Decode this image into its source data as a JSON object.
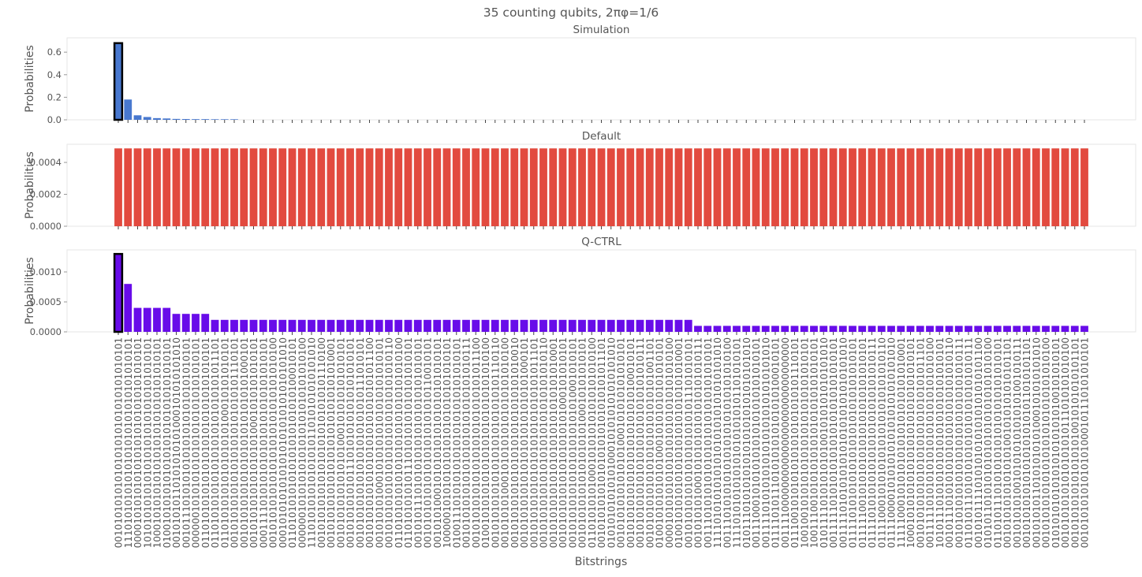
{
  "figure_title": "35 counting qubits, 2πφ=1/6",
  "xlabel": "Bitstrings",
  "colors": {
    "simulation": "#4878cf",
    "default": "#e24a3f",
    "qctrl": "#680ce9",
    "highlight_edge": "#000000",
    "axes_edge": "#e6e6e6"
  },
  "chart_data": [
    {
      "type": "bar",
      "title": "Simulation",
      "ylabel": "Probabilities",
      "ylim": [
        0,
        0.727
      ],
      "yticks": [
        "0.0",
        "0.2",
        "0.4",
        "0.6"
      ],
      "ytick_values": [
        0,
        0.2,
        0.4,
        0.6
      ],
      "highlight_index": 0,
      "values": [
        0.68,
        0.18,
        0.04,
        0.025,
        0.015,
        0.012,
        0.008,
        0.007,
        0.006,
        0.006,
        0.005,
        0.005,
        0.005,
        0,
        0,
        0,
        0,
        0,
        0,
        0,
        0,
        0,
        0,
        0,
        0,
        0,
        0,
        0,
        0,
        0,
        0,
        0,
        0,
        0,
        0,
        0,
        0,
        0,
        0,
        0,
        0,
        0,
        0,
        0,
        0,
        0,
        0,
        0,
        0,
        0,
        0,
        0,
        0,
        0,
        0,
        0,
        0,
        0,
        0,
        0,
        0,
        0,
        0,
        0,
        0,
        0,
        0,
        0,
        0,
        0,
        0,
        0,
        0,
        0,
        0,
        0,
        0,
        0,
        0,
        0,
        0,
        0,
        0,
        0,
        0,
        0,
        0,
        0,
        0,
        0,
        0,
        0,
        0,
        0,
        0,
        0,
        0,
        0,
        0,
        0,
        0
      ]
    },
    {
      "type": "bar",
      "title": "Default",
      "ylabel": "Probabilities",
      "ylim": [
        0,
        0.000514
      ],
      "yticks": [
        "0.0000",
        "0.0002",
        "0.0004"
      ],
      "ytick_values": [
        0,
        0.0002,
        0.0004
      ],
      "highlight_index": null,
      "values": [
        0.000488,
        0.000488,
        0.000488,
        0.000488,
        0.000488,
        0.000488,
        0.000488,
        0.000488,
        0.000488,
        0.000488,
        0.000488,
        0.000488,
        0.000488,
        0.000488,
        0.000488,
        0.000488,
        0.000488,
        0.000488,
        0.000488,
        0.000488,
        0.000488,
        0.000488,
        0.000488,
        0.000488,
        0.000488,
        0.000488,
        0.000488,
        0.000488,
        0.000488,
        0.000488,
        0.000488,
        0.000488,
        0.000488,
        0.000488,
        0.000488,
        0.000488,
        0.000488,
        0.000488,
        0.000488,
        0.000488,
        0.000488,
        0.000488,
        0.000488,
        0.000488,
        0.000488,
        0.000488,
        0.000488,
        0.000488,
        0.000488,
        0.000488,
        0.000488,
        0.000488,
        0.000488,
        0.000488,
        0.000488,
        0.000488,
        0.000488,
        0.000488,
        0.000488,
        0.000488,
        0.000488,
        0.000488,
        0.000488,
        0.000488,
        0.000488,
        0.000488,
        0.000488,
        0.000488,
        0.000488,
        0.000488,
        0.000488,
        0.000488,
        0.000488,
        0.000488,
        0.000488,
        0.000488,
        0.000488,
        0.000488,
        0.000488,
        0.000488,
        0.000488,
        0.000488,
        0.000488,
        0.000488,
        0.000488,
        0.000488,
        0.000488,
        0.000488,
        0.000488,
        0.000488,
        0.000488,
        0.000488,
        0.000488,
        0.000488,
        0.000488,
        0.000488,
        0.000488,
        0.000488,
        0.000488,
        0.000488,
        0.000488
      ]
    },
    {
      "type": "bar",
      "title": "Q-CTRL",
      "ylabel": "Probabilities",
      "ylim": [
        0,
        0.001368
      ],
      "yticks": [
        "0.0000",
        "0.0005",
        "0.0010"
      ],
      "ytick_values": [
        0,
        0.0005,
        0.001
      ],
      "highlight_index": 0,
      "values": [
        0.0013,
        0.0008,
        0.0004,
        0.0004,
        0.0004,
        0.0004,
        0.0003,
        0.0003,
        0.0003,
        0.0003,
        0.0002,
        0.0002,
        0.0002,
        0.0002,
        0.0002,
        0.0002,
        0.0002,
        0.0002,
        0.0002,
        0.0002,
        0.0002,
        0.0002,
        0.0002,
        0.0002,
        0.0002,
        0.0002,
        0.0002,
        0.0002,
        0.0002,
        0.0002,
        0.0002,
        0.0002,
        0.0002,
        0.0002,
        0.0002,
        0.0002,
        0.0002,
        0.0002,
        0.0002,
        0.0002,
        0.0002,
        0.0002,
        0.0002,
        0.0002,
        0.0002,
        0.0002,
        0.0002,
        0.0002,
        0.0002,
        0.0002,
        0.0002,
        0.0002,
        0.0002,
        0.0002,
        0.0002,
        0.0002,
        0.0002,
        0.0002,
        0.0002,
        0.0002,
        0.0001,
        0.0001,
        0.0001,
        0.0001,
        0.0001,
        0.0001,
        0.0001,
        0.0001,
        0.0001,
        0.0001,
        0.0001,
        0.0001,
        0.0001,
        0.0001,
        0.0001,
        0.0001,
        0.0001,
        0.0001,
        0.0001,
        0.0001,
        0.0001,
        0.0001,
        0.0001,
        0.0001,
        0.0001,
        0.0001,
        0.0001,
        0.0001,
        0.0001,
        0.0001,
        0.0001,
        0.0001,
        0.0001,
        0.0001,
        0.0001,
        0.0001,
        0.0001,
        0.0001,
        0.0001,
        0.0001,
        0.0001
      ]
    }
  ],
  "categories": [
    "00101010101010101010101010101010101",
    "11101010101010101010101010101010101",
    "00001010101010101010101010101010101",
    "10101010101010101010101010101010101",
    "10001010101010101010101010101010101",
    "01001010101010101010101010101010101",
    "00101010110101010101000101010101010",
    "00101110101010101010101010101010101",
    "00000010101010101010101010101010101",
    "01101010101010101010101010101010101",
    "01101010101010101010101010101011101",
    "01101010101010101010100010101010101",
    "00101010101010101010101010101110101",
    "00101010101010101010101010101000101",
    "00101010101010101010001010101010101",
    "00011110101010101010101010101010101",
    "00101010101010101010101010101010100",
    "00010101010101010101010101010101010",
    "01101010101010101010101010100010101",
    "00000010101010101010101010101010100",
    "11101010101010101011010101010101010",
    "00101010101010101010101010101110100",
    "00101010101010101010101010101010001",
    "00101010101010101000101010101010101",
    "00101010101011101010101010101010101",
    "00101010101010101010101010111010101",
    "00101010101010101010101010101011100",
    "00101010100010101010101010101010101",
    "00101010101010101010101010101010110",
    "01101010101010101010101010101010100",
    "01101010101011101010101010101010101",
    "00101011101010101010101010101010101",
    "00101010101010101010101010110010101",
    "00101010001010101010101010101010101",
    "10000010101010101010101010101010101",
    "01001110101010101010101010101010101",
    "00101010101010101010101010101010111",
    "00101010101010101010101010101011100",
    "01001010101010101010101010101010100",
    "00101010101010101010101010101110110",
    "00101010100010101010101010101010100",
    "00101010101010101010101010101010010",
    "00101010101010101010101010101000101",
    "00101010101010101010101010101011101",
    "00101010101010101010101010101010110",
    "00101010101010101010101010101010001",
    "00101010101010101010101000101010101",
    "00101010101010101010101010001010101",
    "00101010101010101010100010101010101",
    "01101010101000101010101010101010100",
    "00101010101010101010101010101011101",
    "01010101010101000101010101010101010",
    "00101010101010101000101010101010101",
    "00101010101010101010101010100010101",
    "00101010101010101010101010101010111",
    "00101010101010101010101010101001101",
    "01001010101010100010101010101010101",
    "00001010101010101010101010101010100",
    "01001010101010101010101010101010001",
    "00101010101010101010101011101010101",
    "00101010100010101010101010101010111",
    "00111010101010101010101010101010101",
    "11110101010101010101010101010101010",
    "00111010101010101010101010101010100",
    "11110101010101010101010101101010101",
    "01011101010101010101010101010101010",
    "00111000101010101010101010101010101",
    "00111101010101010101010101010101010",
    "01111010111010101010101010100010101",
    "00111100000000000000000000000000000",
    "01110010101010101010101010101110101",
    "10010010101010101010101010101010101",
    "10011100101010101010101010101010101",
    "01011110101010101001010101010101010",
    "00111110101010101010101010101010101",
    "00111101010101010101010101010101010",
    "01111010101010101010101010101010101",
    "01111100101010101010101010101010101",
    "01111010101010101010101010101010111",
    "01111000101010101010101010101010110",
    "01111000010101010101010101010101010",
    "11111000101010101010101010101010001",
    "10001010101010101010101010101010101",
    "00101010101010101010101010101011101",
    "00111110101010101010101010101010100",
    "10101110101010101010101010101010101",
    "00101110101010101010101010101010110",
    "00101010101010101010101010101010111",
    "01101011101010101010101010101010111",
    "00101011110101010101010101010101100",
    "01010110101010101010101010101010100",
    "01101011101010101010101010101010101",
    "00101010101010101001010101010101101",
    "00101010100101010101010101001010111",
    "00101010101010101010101011010101101",
    "00101010110101010101000101010101010",
    "00101010101010101010101010101010100",
    "01010101010101010101010100101010101",
    "00101010101010101010111010101010100",
    "00101010101010101010010101010101101",
    "00101010101010101000101110101010101"
  ]
}
